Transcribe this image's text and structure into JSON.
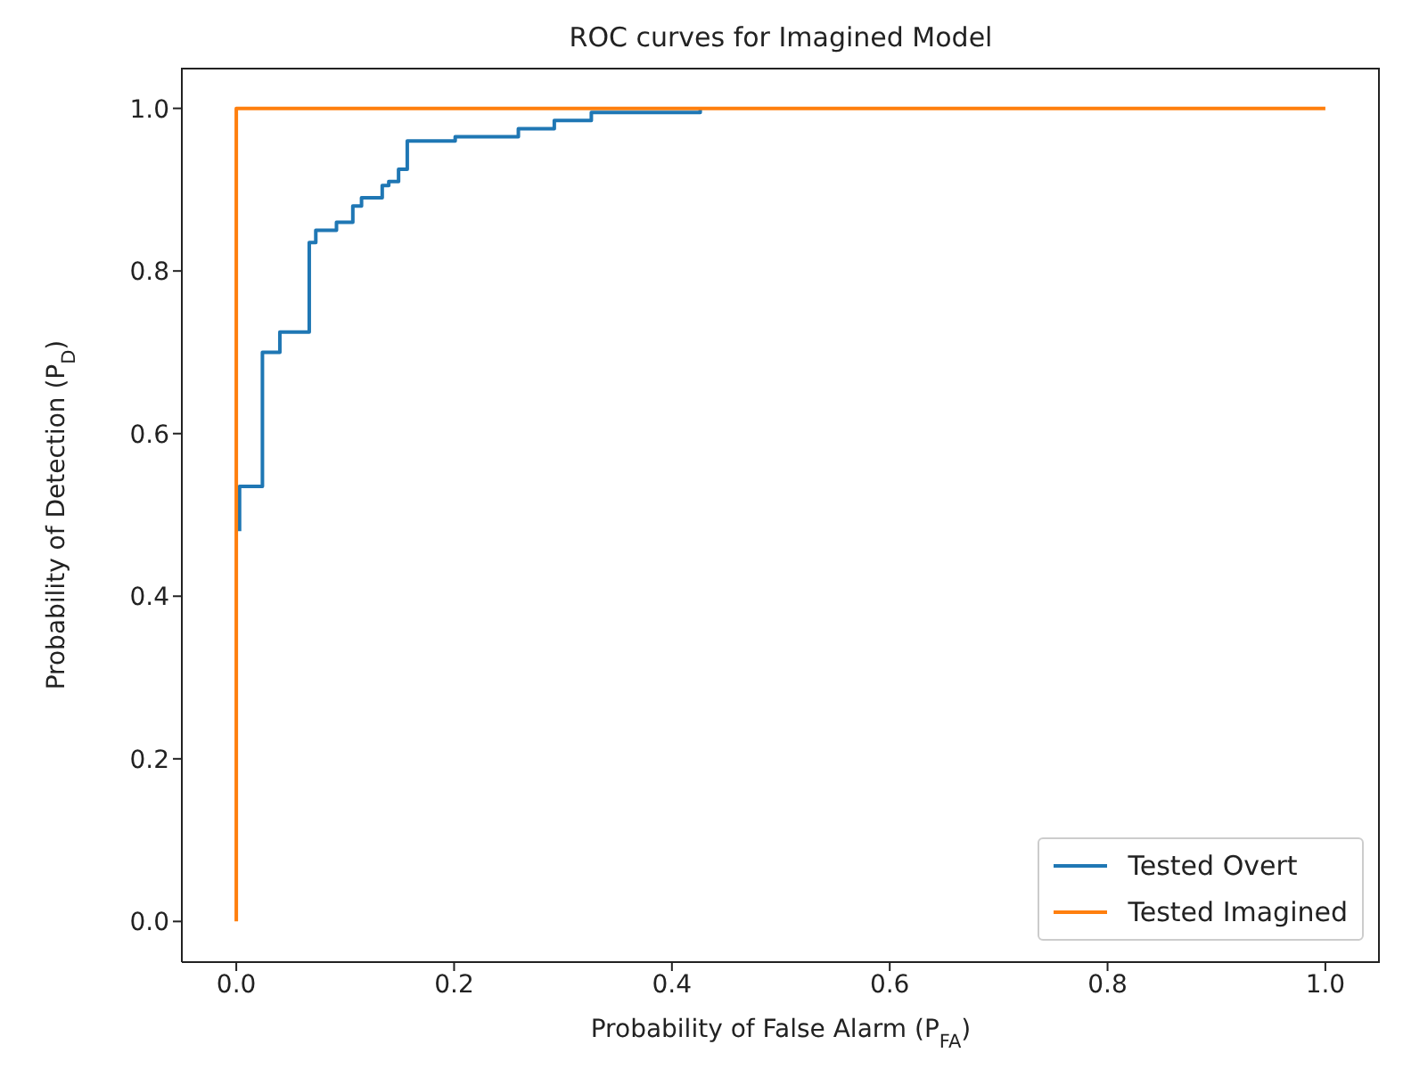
{
  "chart_data": {
    "type": "line",
    "title": "ROC curves for Imagined Model",
    "xlabel": "Probability of False Alarm (P$_{FA}$)",
    "ylabel": "Probability of Detection (P$_{D}$)",
    "xlim": [
      -0.05,
      1.05
    ],
    "ylim": [
      -0.05,
      1.05
    ],
    "xticks": [
      {
        "value": 0,
        "label": "0.0"
      },
      {
        "value": 0.2,
        "label": "0.2"
      },
      {
        "value": 0.4,
        "label": "0.4"
      },
      {
        "value": 0.6,
        "label": "0.6"
      },
      {
        "value": 0.8,
        "label": "0.8"
      },
      {
        "value": 1,
        "label": "1.0"
      }
    ],
    "yticks": [
      {
        "value": 0,
        "label": "0.0"
      },
      {
        "value": 0.2,
        "label": "0.2"
      },
      {
        "value": 0.4,
        "label": "0.4"
      },
      {
        "value": 0.6,
        "label": "0.6"
      },
      {
        "value": 0.8,
        "label": "0.8"
      },
      {
        "value": 1,
        "label": "1.0"
      }
    ],
    "legend": "bottom right",
    "grid": false,
    "series": [
      {
        "name": "Tested Overt",
        "color": "#1f77b4",
        "x": [
          0.003,
          0.003,
          0.024,
          0.024,
          0.04,
          0.04,
          0.067,
          0.067,
          0.073,
          0.073,
          0.092,
          0.092,
          0.107,
          0.107,
          0.115,
          0.115,
          0.134,
          0.134,
          0.14,
          0.14,
          0.149,
          0.149,
          0.157,
          0.157,
          0.201,
          0.201,
          0.259,
          0.259,
          0.292,
          0.292,
          0.326,
          0.326,
          0.426,
          0.426
        ],
        "values": [
          0.48,
          0.535,
          0.535,
          0.7,
          0.7,
          0.725,
          0.725,
          0.835,
          0.835,
          0.85,
          0.85,
          0.86,
          0.86,
          0.88,
          0.88,
          0.89,
          0.89,
          0.905,
          0.905,
          0.91,
          0.91,
          0.925,
          0.925,
          0.96,
          0.96,
          0.965,
          0.965,
          0.975,
          0.975,
          0.985,
          0.985,
          0.995,
          0.995,
          1.0
        ]
      },
      {
        "name": "Tested Imagined",
        "color": "#ff7f0e",
        "x": [
          0,
          0,
          1
        ],
        "values": [
          0,
          1,
          1
        ]
      }
    ]
  }
}
